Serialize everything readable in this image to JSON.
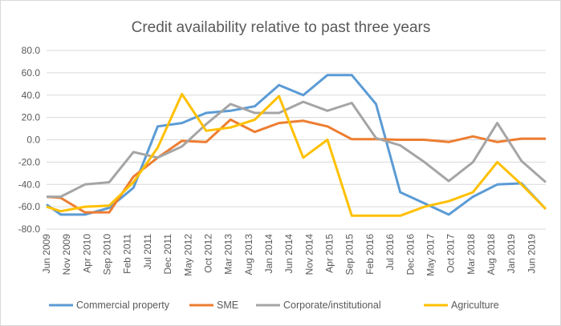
{
  "chart_data": {
    "type": "line",
    "title": "Credit availability relative to past three years",
    "xlabel": "",
    "ylabel": "",
    "ylim": [
      -80,
      80
    ],
    "yticks": [
      "80.0",
      "60.0",
      "40.0",
      "20.0",
      "0.0",
      "-20.0",
      "-40.0",
      "-60.0",
      "-80.0"
    ],
    "ytick_values": [
      80,
      60,
      40,
      20,
      0,
      -20,
      -40,
      -60,
      -80
    ],
    "xlim_months_since_jun_2009": [
      0,
      123.5
    ],
    "xtick_labels": [
      "Jun 2009",
      "Nov 2009",
      "Apr 2010",
      "Sep 2010",
      "Feb 2011",
      "Jul 2011",
      "Dec 2011",
      "May 2012",
      "Oct 2012",
      "Mar 2013",
      "Aug 2013",
      "Jan 2014",
      "Jun 2014",
      "Nov 2014",
      "Apr 2015",
      "Sep 2015",
      "Feb 2016",
      "Jul 2016",
      "Dec 2016",
      "May 2017",
      "Oct 2017",
      "Mar 2018",
      "Aug 2018",
      "Jan 2019",
      "Jun 2019"
    ],
    "xtick_months": [
      0,
      5,
      10,
      15,
      20,
      25,
      30,
      35,
      40,
      45,
      50,
      55,
      60,
      65,
      70,
      75,
      80,
      85,
      90,
      95,
      100,
      105,
      110,
      115,
      120
    ],
    "x_months": [
      0,
      3.5,
      9.5,
      15.5,
      21.5,
      27.5,
      33.5,
      39.5,
      45.5,
      51.5,
      57.5,
      63.5,
      69.5,
      75.5,
      81.5,
      87.5,
      93.5,
      99.5,
      105.5,
      111.5,
      117.5,
      123.5
    ],
    "grid": true,
    "legend_position": "bottom",
    "series": [
      {
        "name": "Commercial property",
        "color": "#5B9BD5",
        "values": [
          -58,
          -67,
          -67,
          -61,
          -43,
          12,
          15,
          24,
          26,
          30,
          49,
          40,
          58,
          58,
          32,
          -47,
          -57,
          -67,
          -51,
          -40,
          -39,
          -62
        ]
      },
      {
        "name": "SME",
        "color": "#ED7D31",
        "values": [
          -51,
          -52,
          -65,
          -65,
          -33,
          -16,
          -1,
          -2,
          18,
          7,
          15,
          17,
          12,
          0.5,
          0.5,
          0,
          0,
          -2,
          3,
          -2,
          1,
          1
        ]
      },
      {
        "name": "Corporate/institutional",
        "color": "#A5A5A5",
        "values": [
          -51,
          -51,
          -40,
          -38,
          -11,
          -16,
          -6,
          14,
          32,
          24,
          24,
          34,
          26,
          33,
          1.5,
          -5,
          -20,
          -37,
          -20,
          15,
          -19,
          -38
        ]
      },
      {
        "name": "Agriculture",
        "color": "#FFC000",
        "values": [
          -60,
          -64,
          -60,
          -59,
          -38,
          -7,
          41,
          8,
          11,
          18,
          39,
          -16,
          0,
          -68,
          -68,
          -68,
          -60,
          -55,
          -47,
          -20,
          -40,
          -62
        ]
      }
    ]
  }
}
